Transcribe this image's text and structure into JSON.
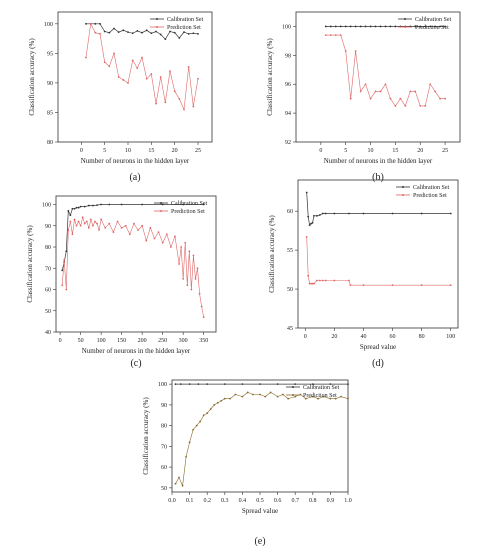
{
  "chart_data": [
    {
      "type": "line",
      "panel_label": "(a)",
      "xlabel": "Number of neurons in the hidden layer",
      "ylabel": "Classification accuracy (%)",
      "xlim": [
        -5,
        28
      ],
      "ylim": [
        80,
        102
      ],
      "xticks": [
        0,
        5,
        10,
        15,
        20,
        25
      ],
      "yticks": [
        80,
        85,
        90,
        95,
        100
      ],
      "legend": "top-right",
      "series": [
        {
          "name": "Calibration Set",
          "color": "#333333",
          "x": [
            1,
            2,
            3,
            4,
            5,
            6,
            7,
            8,
            9,
            10,
            11,
            12,
            13,
            14,
            15,
            16,
            17,
            18,
            19,
            20,
            21,
            22,
            23,
            24,
            25
          ],
          "y": [
            100,
            100,
            100,
            100,
            98.7,
            98.5,
            99.2,
            98.6,
            98.9,
            98.6,
            98.4,
            98.8,
            98.5,
            98.9,
            98.4,
            98.7,
            98.2,
            97.4,
            98.7,
            98.5,
            97.6,
            98.6,
            98.3,
            98.4,
            98.3
          ]
        },
        {
          "name": "Prediction Set",
          "color": "#e06666",
          "x": [
            1,
            2,
            3,
            4,
            5,
            6,
            7,
            8,
            9,
            10,
            11,
            12,
            13,
            14,
            15,
            16,
            17,
            18,
            19,
            20,
            21,
            22,
            23,
            24,
            25
          ],
          "y": [
            94.3,
            100,
            98.5,
            98.3,
            93.5,
            92.8,
            95.0,
            91.0,
            90.5,
            90.0,
            93.8,
            92.5,
            94.3,
            90.7,
            91.5,
            86.5,
            91.0,
            86.7,
            92.0,
            88.6,
            87.3,
            85.5,
            92.7,
            86.0,
            90.7
          ]
        }
      ]
    },
    {
      "type": "line",
      "panel_label": "(b)",
      "xlabel": "Number of neurons in the hidden layer",
      "ylabel": "Classification accuracy (%)",
      "xlim": [
        -5,
        28
      ],
      "ylim": [
        92,
        101
      ],
      "xticks": [
        0,
        5,
        10,
        15,
        20,
        25
      ],
      "yticks": [
        92,
        94,
        96,
        98,
        100
      ],
      "legend": "top-right",
      "series": [
        {
          "name": "Calibration Set",
          "color": "#333333",
          "x": [
            1,
            2,
            3,
            4,
            5,
            6,
            7,
            8,
            9,
            10,
            11,
            12,
            13,
            14,
            15,
            16,
            17,
            18,
            19,
            20,
            21,
            22,
            23,
            24,
            25
          ],
          "y": [
            100,
            100,
            100,
            100,
            100,
            100,
            100,
            100,
            100,
            100,
            100,
            100,
            100,
            100,
            100,
            100,
            100,
            100,
            100,
            100,
            100,
            100,
            100,
            100,
            100
          ]
        },
        {
          "name": "Prediction Set",
          "color": "#e06666",
          "x": [
            1,
            2,
            3,
            4,
            5,
            6,
            7,
            8,
            9,
            10,
            11,
            12,
            13,
            14,
            15,
            16,
            17,
            18,
            19,
            20,
            21,
            22,
            23,
            24,
            25
          ],
          "y": [
            99.4,
            99.4,
            99.4,
            99.4,
            98.3,
            95.0,
            98.3,
            95.5,
            96.0,
            95.0,
            95.5,
            95.5,
            96.0,
            95.0,
            94.5,
            95.0,
            94.5,
            95.5,
            95.5,
            94.5,
            94.5,
            96.0,
            95.5,
            95.0,
            95.0
          ]
        }
      ]
    },
    {
      "type": "line",
      "panel_label": "(c)",
      "xlabel": "Number of neurons in the hidden layer",
      "ylabel": "Classification accuracy (%)",
      "xlim": [
        -10,
        380
      ],
      "ylim": [
        40,
        104
      ],
      "xticks": [
        0,
        50,
        100,
        150,
        200,
        250,
        300,
        350
      ],
      "yticks": [
        40,
        50,
        60,
        70,
        80,
        90,
        100
      ],
      "legend": "top-right",
      "series": [
        {
          "name": "Calibration Set",
          "color": "#333333",
          "x": [
            5,
            10,
            15,
            20,
            25,
            30,
            35,
            40,
            45,
            50,
            60,
            70,
            80,
            90,
            100,
            120,
            150,
            200,
            250,
            300,
            350
          ],
          "y": [
            69,
            73,
            78,
            97,
            95,
            98,
            98,
            98.5,
            98.5,
            99,
            99,
            99.5,
            99.5,
            99.7,
            100,
            100,
            100,
            100,
            100,
            100,
            100
          ]
        },
        {
          "name": "Prediction Set",
          "color": "#e06666",
          "x": [
            5,
            10,
            15,
            20,
            25,
            30,
            35,
            40,
            45,
            50,
            55,
            60,
            65,
            70,
            75,
            80,
            85,
            90,
            95,
            100,
            110,
            120,
            130,
            140,
            150,
            160,
            170,
            180,
            190,
            200,
            210,
            220,
            230,
            240,
            250,
            260,
            270,
            280,
            290,
            295,
            300,
            305,
            310,
            315,
            320,
            325,
            330,
            335,
            340,
            345,
            350
          ],
          "y": [
            62,
            74,
            60,
            88,
            92,
            86,
            93,
            90,
            92,
            90,
            94,
            91,
            92,
            89,
            93,
            90,
            92,
            91,
            88,
            93,
            89,
            91,
            87,
            92,
            89,
            90,
            86,
            91,
            88,
            90,
            83,
            89,
            84,
            87,
            82,
            86,
            80,
            85,
            72,
            80,
            65,
            82,
            62,
            78,
            60,
            76,
            65,
            70,
            58,
            52,
            47
          ]
        }
      ]
    },
    {
      "type": "line",
      "panel_label": "(d)",
      "xlabel": "Spread value",
      "ylabel": "Classification accuracy (%)",
      "xlim": [
        -5,
        105
      ],
      "ylim": [
        45,
        64
      ],
      "xticks": [
        0,
        20,
        40,
        60,
        80,
        100
      ],
      "yticks": [
        45,
        50,
        55,
        60
      ],
      "legend": "top-right",
      "series": [
        {
          "name": "Calibration Set",
          "color": "#333333",
          "x": [
            1,
            2,
            3,
            4,
            5,
            6,
            8,
            10,
            12,
            14,
            20,
            30,
            40,
            60,
            80,
            100
          ],
          "y": [
            62.4,
            59.3,
            58.2,
            58.4,
            58.5,
            59.4,
            59.4,
            59.5,
            59.7,
            59.7,
            59.7,
            59.7,
            59.7,
            59.7,
            59.7,
            59.7
          ]
        },
        {
          "name": "Prediction Set",
          "color": "#e06666",
          "x": [
            1,
            2,
            3,
            4,
            5,
            6,
            8,
            10,
            12,
            14,
            20,
            30,
            31,
            40,
            60,
            80,
            100
          ],
          "y": [
            56.7,
            51.7,
            50.7,
            50.7,
            50.7,
            50.7,
            51.1,
            51.1,
            51.1,
            51.1,
            51.1,
            51.1,
            50.5,
            50.5,
            50.5,
            50.5,
            50.5
          ]
        }
      ]
    },
    {
      "type": "line",
      "panel_label": "(e)",
      "xlabel": "Spread value",
      "ylabel": "Classification accuracy (%)",
      "xlim": [
        0,
        1.0
      ],
      "ylim": [
        48,
        102
      ],
      "xticks": [
        0.0,
        0.1,
        0.2,
        0.3,
        0.4,
        0.5,
        0.6,
        0.7,
        0.8,
        0.9,
        1.0
      ],
      "yticks": [
        50,
        60,
        70,
        80,
        90,
        100
      ],
      "legend": "top-right",
      "series": [
        {
          "name": "Calibration Set",
          "color": "#333333",
          "x": [
            0.02,
            0.05,
            0.1,
            0.15,
            0.2,
            0.3,
            0.4,
            0.5,
            0.6,
            0.7,
            0.8,
            0.9,
            1.0
          ],
          "y": [
            100,
            100,
            100,
            100,
            100,
            100,
            100,
            100,
            100,
            100,
            100,
            100,
            100
          ]
        },
        {
          "name": "Prediction Set",
          "color": "#8a6a2a",
          "x": [
            0.02,
            0.04,
            0.06,
            0.08,
            0.1,
            0.12,
            0.14,
            0.16,
            0.18,
            0.2,
            0.22,
            0.24,
            0.26,
            0.28,
            0.3,
            0.33,
            0.36,
            0.4,
            0.43,
            0.46,
            0.5,
            0.53,
            0.56,
            0.6,
            0.63,
            0.66,
            0.7,
            0.73,
            0.76,
            0.8,
            0.83,
            0.86,
            0.9,
            0.93,
            0.96,
            1.0
          ],
          "y": [
            52,
            55,
            51,
            65,
            72,
            78,
            80,
            82,
            85,
            86,
            88,
            90,
            91,
            92,
            93,
            93,
            95,
            94,
            96,
            95,
            95,
            94,
            96,
            94,
            95,
            93,
            94,
            95,
            93,
            94,
            93,
            94,
            93,
            93,
            94,
            93
          ]
        }
      ]
    }
  ]
}
